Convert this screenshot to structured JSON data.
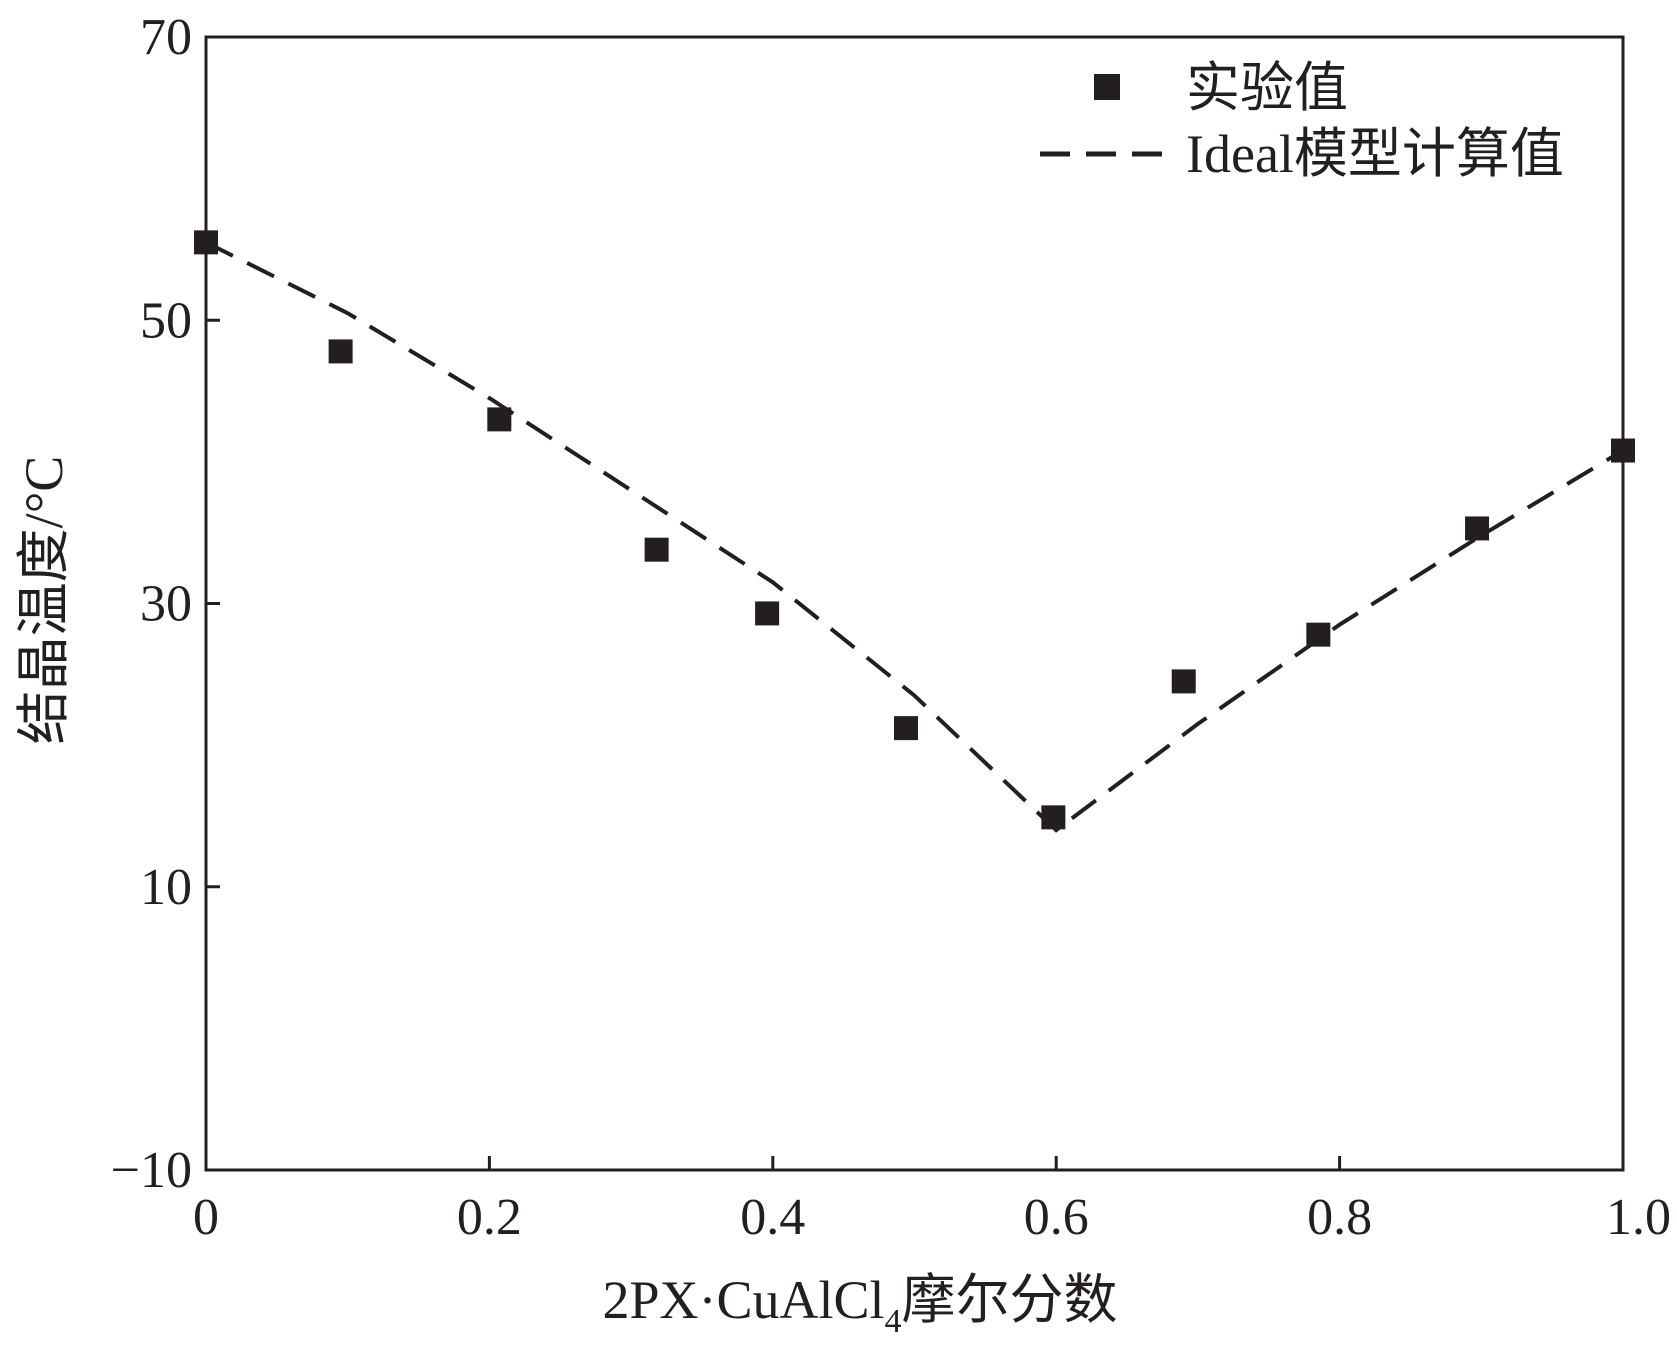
{
  "chart_data": {
    "type": "scatter",
    "xlabel": {
      "main": "2PX·CuAlCl",
      "subscript": "4",
      "suffix": "摩尔分数"
    },
    "ylabel": "结晶温度/°C",
    "xlim": [
      0,
      1.0
    ],
    "ylim": [
      -10,
      70
    ],
    "xticks": [
      0,
      0.2,
      0.4,
      0.6,
      0.8,
      1.0
    ],
    "xtick_labels": [
      "0",
      "0.2",
      "0.4",
      "0.6",
      "0.8",
      "1.0"
    ],
    "yticks": [
      -10,
      10,
      30,
      50,
      70
    ],
    "ytick_labels": [
      "−10",
      "10",
      "30",
      "50",
      "70"
    ],
    "grid": false,
    "legend_position": "top-right",
    "colors": {
      "ink": "#231f20"
    },
    "series": [
      {
        "name": "实验值",
        "kind": "scatter",
        "marker": "square",
        "x": [
          0.0,
          0.095,
          0.207,
          0.318,
          0.396,
          0.494,
          0.598,
          0.69,
          0.785,
          0.897,
          1.0
        ],
        "y": [
          55.5,
          47.8,
          43.0,
          33.8,
          29.3,
          21.2,
          14.9,
          24.5,
          27.8,
          35.3,
          40.8
        ]
      },
      {
        "name": "Ideal模型计算值",
        "kind": "line",
        "style": "dashed",
        "x": [
          0.0,
          0.1,
          0.2,
          0.3,
          0.4,
          0.5,
          0.6,
          0.7,
          0.8,
          0.9,
          1.0
        ],
        "y": [
          55.5,
          50.5,
          44.5,
          38.0,
          31.5,
          23.5,
          14.0,
          21.5,
          28.5,
          34.8,
          40.8
        ]
      }
    ]
  }
}
